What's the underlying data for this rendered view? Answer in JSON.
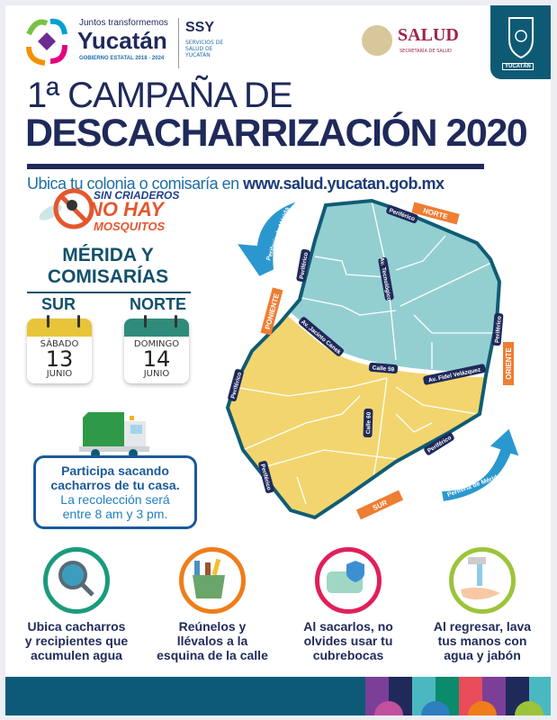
{
  "header": {
    "gov_tagline": "Juntos transformemos",
    "gov_name": "Yucatán",
    "gov_period": "GOBIERNO ESTATAL 2018 - 2024",
    "ssy_abbr": "SSY",
    "ssy_name": "SERVICIOS DE SALUD DE YUCATÁN",
    "salud_name": "SALUD",
    "salud_sub": "SECRETARÍA DE SALUD",
    "state_emblem_text": "YUCATÁN"
  },
  "title": {
    "line1": "1ª CAMPAÑA DE",
    "line2": "DESCACHARRIZACIÓN 2020",
    "subtitle_text": "Ubica tu colonia o comisaría en ",
    "subtitle_url": "www.salud.yucatan.gob.mx"
  },
  "campaign_logo": {
    "line1": "SIN CRIADEROS",
    "line2": "NO HAY",
    "line3": "MOSQUITOS"
  },
  "schedule": {
    "heading_line1": "MÉRIDA Y",
    "heading_line2": "COMISARÍAS",
    "zones": [
      {
        "zone": "SUR",
        "weekday": "SÁBADO",
        "day": "13",
        "month": "JUNIO",
        "color": "#e8c43a"
      },
      {
        "zone": "NORTE",
        "weekday": "DOMINGO",
        "day": "14",
        "month": "JUNIO",
        "color": "#2f8c7a"
      }
    ]
  },
  "info_box": {
    "line1": "Participa sacando",
    "line2": "cacharros de tu casa.",
    "line3": "La recolección será",
    "line4": "entre 8 am y 3 pm."
  },
  "map": {
    "north_color": "#93cfd1",
    "south_color": "#f2d56e",
    "streets": [
      "Periférico",
      "Periférico",
      "Periférico",
      "Periférico",
      "Periférico",
      "Periférico",
      "Av. Tecnológico",
      "Av. Jacinto Canek",
      "Calle 59",
      "Av. Fidel Velázquez",
      "Calle 60"
    ],
    "directions": [
      "NORTE",
      "PONIENTE",
      "ORIENTE",
      "SUR"
    ],
    "arrow_label_1": "Periferia de Mérida",
    "arrow_label_2": "Periferia de Mérida"
  },
  "steps": [
    {
      "line1": "Ubica cacharros",
      "line2": "y recipientes que",
      "line3": "acumulen agua",
      "icon": "magnifier-icon",
      "color": "#1a9b7b"
    },
    {
      "line1": "Reúnelos y",
      "line2": "llévalos a la",
      "line3": "esquina de la calle",
      "icon": "recycle-bin-icon",
      "color": "#ef7d1a"
    },
    {
      "line1": "Al sacarlos, no",
      "line2": "olvides usar tu",
      "line3": "cubrebocas",
      "icon": "face-mask-icon",
      "color": "#e01f5b"
    },
    {
      "line1": "Al regresar, lava",
      "line2": "tus manos con",
      "line3": "agua y jabón",
      "icon": "hand-wash-icon",
      "color": "#9cc43a"
    }
  ]
}
